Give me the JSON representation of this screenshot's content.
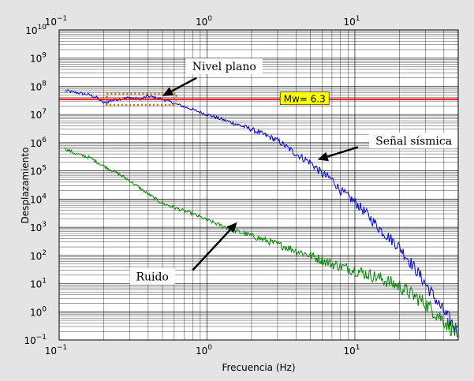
{
  "chart_data": {
    "type": "line",
    "title": "",
    "xlabel": "Frecuencia (Hz)",
    "ylabel": "Desplazamiento",
    "xscale": "log",
    "yscale": "log",
    "xlim": [
      0.1,
      50
    ],
    "ylim": [
      0.1,
      10000000000
    ],
    "grid": true,
    "x_ticks": [
      {
        "value": 0.1,
        "base": "10",
        "exp": "−1"
      },
      {
        "value": 1,
        "base": "10",
        "exp": "0"
      },
      {
        "value": 10,
        "base": "10",
        "exp": "1"
      }
    ],
    "y_ticks": [
      {
        "value": 0.1,
        "base": "10",
        "exp": "−1"
      },
      {
        "value": 1,
        "base": "10",
        "exp": "0"
      },
      {
        "value": 10,
        "base": "10",
        "exp": "1"
      },
      {
        "value": 100,
        "base": "10",
        "exp": "2"
      },
      {
        "value": 1000,
        "base": "10",
        "exp": "3"
      },
      {
        "value": 10000,
        "base": "10",
        "exp": "4"
      },
      {
        "value": 100000,
        "base": "10",
        "exp": "5"
      },
      {
        "value": 1000000,
        "base": "10",
        "exp": "6"
      },
      {
        "value": 10000000,
        "base": "10",
        "exp": "7"
      },
      {
        "value": 100000000,
        "base": "10",
        "exp": "8"
      },
      {
        "value": 1000000000,
        "base": "10",
        "exp": "9"
      },
      {
        "value": 10000000000,
        "base": "10",
        "exp": "10"
      }
    ],
    "series": [
      {
        "color": "#0000dd",
        "x": [
          0.11,
          0.13,
          0.16,
          0.18,
          0.2,
          0.22,
          0.25,
          0.3,
          0.35,
          0.4,
          0.5,
          0.6,
          0.8,
          1.0,
          1.5,
          2,
          3,
          4,
          5,
          6,
          7,
          8,
          10,
          12,
          15,
          20,
          25,
          30,
          40,
          50
        ],
        "y": [
          70000000,
          60000000,
          50000000,
          40000000,
          25000000,
          30000000,
          35000000,
          40000000,
          35000000,
          45000000,
          35000000,
          25000000,
          15000000,
          10000000,
          5000000,
          3000000,
          1200000,
          400000,
          200000,
          80000,
          50000,
          20000,
          8000,
          3000,
          800,
          200,
          40,
          10,
          1,
          0.2
        ],
        "noise": 0.05
      },
      {
        "color": "#008800",
        "x": [
          0.11,
          0.13,
          0.16,
          0.2,
          0.25,
          0.3,
          0.35,
          0.4,
          0.5,
          0.6,
          0.8,
          1.0,
          1.5,
          2,
          3,
          5,
          7,
          10,
          15,
          20,
          30,
          40,
          50
        ],
        "y": [
          600000,
          400000,
          300000,
          150000,
          80000,
          45000,
          25000,
          15000,
          7000,
          5000,
          3000,
          1800,
          800,
          500,
          250,
          100,
          50,
          30,
          15,
          8,
          2,
          0.5,
          0.15
        ],
        "noise": 0.06
      }
    ],
    "reference_line": {
      "y": 35000000,
      "color": "#ee0000",
      "label": "Mw= 6.3",
      "label_x": 3.2,
      "label_bg": "#ffff00"
    },
    "flat_region": {
      "x_start": 0.21,
      "x_end": 0.62,
      "y_low": 22000000,
      "y_high": 55000000,
      "color": "#d2691e"
    },
    "annotations": [
      {
        "name": "nivel-plano",
        "text": "Nivel plano",
        "text_x": 0.72,
        "text_y": 400000000,
        "arrow_from": [
          0.85,
          200000000
        ],
        "arrow_to": [
          0.5,
          45000000
        ]
      },
      {
        "name": "senal-sismica",
        "text": "Señal sísmica",
        "text_x": 12.5,
        "text_y": 900000,
        "arrow_from": [
          10.5,
          700000
        ],
        "arrow_to": [
          5.6,
          250000
        ]
      },
      {
        "name": "ruido",
        "text": "Ruido",
        "text_x": 0.3,
        "text_y": 14,
        "arrow_from": [
          0.8,
          30
        ],
        "arrow_to": [
          1.6,
          1500
        ]
      }
    ]
  }
}
